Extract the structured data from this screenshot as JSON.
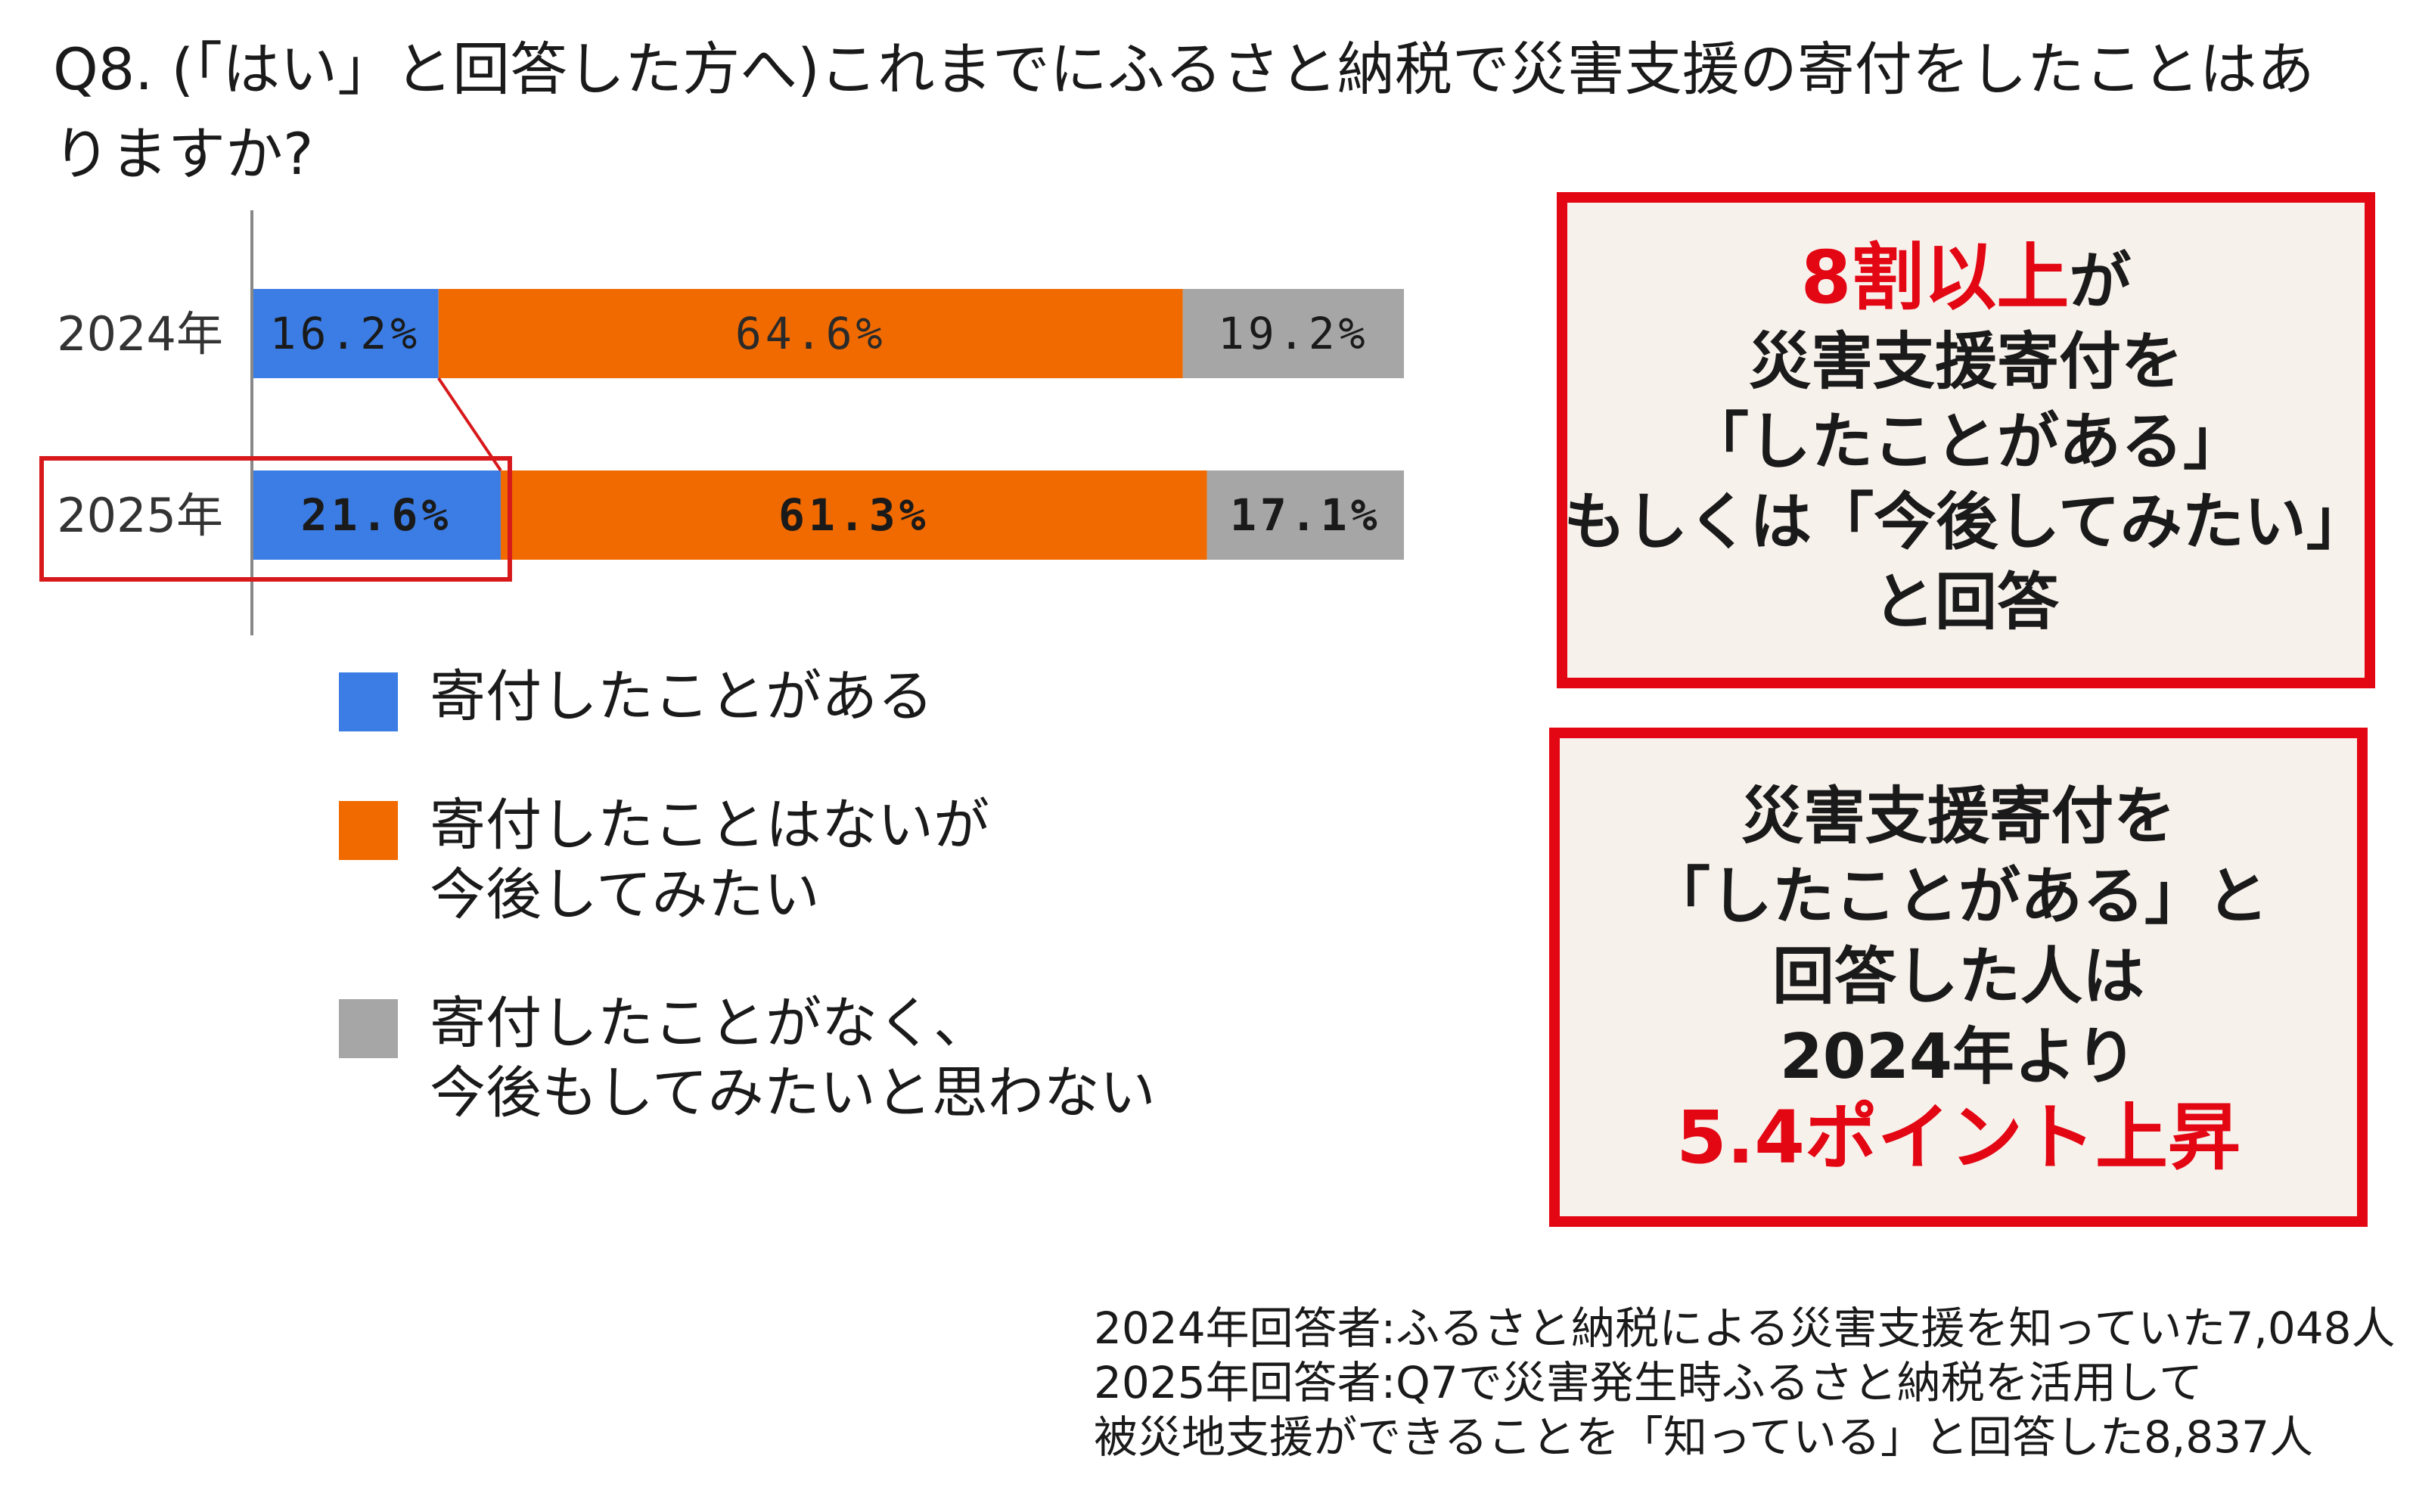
{
  "question": "Q8. (「はい」と回答した方へ)これまでにふるさと納税で災害支援の寄付をしたことはありますか?",
  "chart_data": {
    "type": "bar",
    "orientation": "horizontal",
    "stacked": true,
    "percent_stacked": true,
    "categories": [
      "2024年",
      "2025年"
    ],
    "series": [
      {
        "name": "寄付したことがある",
        "values": [
          16.2,
          21.6
        ],
        "labels": [
          "16.2%",
          "21.6%"
        ],
        "color": "#3b7de4"
      },
      {
        "name": "寄付したことはないが今後してみたい",
        "values": [
          64.6,
          61.3
        ],
        "labels": [
          "64.6%",
          "61.3%"
        ],
        "color": "#f06a00"
      },
      {
        "name": "寄付したことがなく、今後もしてみたいと思わない",
        "values": [
          19.2,
          17.1
        ],
        "labels": [
          "19.2%",
          "17.1%"
        ],
        "color": "#a6a6a6"
      }
    ],
    "xlim": [
      0,
      100
    ],
    "grid": false,
    "legend_position": "bottom-left",
    "highlight": {
      "category": "2025年",
      "series": "寄付したことがある",
      "color": "#d7191c"
    }
  },
  "legend": [
    {
      "label": "寄付したことがある",
      "color": "#3b7de4"
    },
    {
      "label": "寄付したことはないが\n今後してみたい",
      "color": "#f06a00"
    },
    {
      "label": "寄付したことがなく、\n今後もしてみたいと思わない",
      "color": "#a6a6a6"
    }
  ],
  "callout1": {
    "lead_red": "8割以上",
    "lead_rest": "が",
    "line2": "災害支援寄付を",
    "line3": "「したことがある」",
    "line4": "もしくは「今後してみたい」",
    "line5": "と回答"
  },
  "callout2": {
    "line1": "災害支援寄付を",
    "line2": "「したことがある」と",
    "line3": "回答した人は",
    "line4": "2024年より",
    "line5_red": "5.4ポイント上昇"
  },
  "note": {
    "line1": "2024年回答者:ふるさと納税による災害支援を知っていた7,048人",
    "line2": "2025年回答者:Q7で災害発生時ふるさと納税を活用して",
    "line3": "被災地支援ができることを「知っている」と回答した8,837人"
  },
  "colors": {
    "accent_red": "#e30613",
    "callout_bg": "#f7f1ec"
  }
}
